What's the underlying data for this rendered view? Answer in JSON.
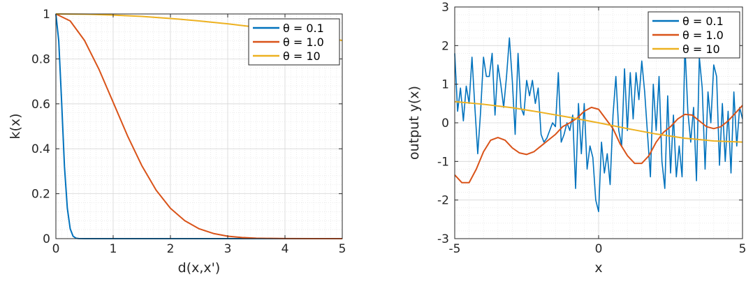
{
  "chart_data": [
    {
      "type": "line",
      "xlabel": "d(x,x')",
      "ylabel": "k(x)",
      "xlim": [
        0,
        5
      ],
      "ylim": [
        0,
        1
      ],
      "xticks": [
        0,
        1,
        2,
        3,
        4,
        5
      ],
      "xtick_labels": [
        "0",
        "1",
        "2",
        "3",
        "4",
        "5"
      ],
      "yticks": [
        0,
        0.2,
        0.4,
        0.6,
        0.8,
        1
      ],
      "ytick_labels": [
        "0",
        "0.2",
        "0.4",
        "0.6",
        "0.8",
        "1"
      ],
      "grid": true,
      "minor_grid": true,
      "legend_position": "top-right",
      "series": [
        {
          "name": "θ = 0.1",
          "color": "#0072BD",
          "x": [
            0,
            0.05,
            0.1,
            0.15,
            0.2,
            0.25,
            0.3,
            0.35,
            0.4,
            0.5,
            0.6,
            1.0,
            2.0,
            3.0,
            4.0,
            5.0
          ],
          "y": [
            1.0,
            0.88,
            0.61,
            0.32,
            0.135,
            0.044,
            0.011,
            0.002,
            0.0003,
            0,
            0,
            0,
            0,
            0,
            0,
            0
          ]
        },
        {
          "name": "θ = 1.0",
          "color": "#D95319",
          "x": [
            0,
            0.25,
            0.5,
            0.75,
            1.0,
            1.25,
            1.5,
            1.75,
            2.0,
            2.25,
            2.5,
            2.75,
            3.0,
            3.25,
            3.5,
            3.75,
            4.0,
            4.5,
            5.0
          ],
          "y": [
            1.0,
            0.969,
            0.882,
            0.755,
            0.607,
            0.458,
            0.325,
            0.216,
            0.135,
            0.08,
            0.044,
            0.023,
            0.011,
            0.005,
            0.002,
            0.001,
            0.0003,
            0,
            0
          ]
        },
        {
          "name": "θ = 10",
          "color": "#EDB120",
          "x": [
            0,
            0.5,
            1.0,
            1.5,
            2.0,
            2.5,
            3.0,
            3.5,
            4.0,
            4.5,
            5.0
          ],
          "y": [
            1.0,
            0.999,
            0.995,
            0.989,
            0.98,
            0.969,
            0.956,
            0.941,
            0.923,
            0.904,
            0.882
          ]
        }
      ]
    },
    {
      "type": "line",
      "xlabel": "x",
      "ylabel": "output y(x)",
      "xlim": [
        -5,
        5
      ],
      "ylim": [
        -3,
        3
      ],
      "xticks": [
        -5,
        0,
        5
      ],
      "xtick_labels": [
        "-5",
        "0",
        "5"
      ],
      "yticks": [
        -3,
        -2,
        -1,
        0,
        1,
        2,
        3
      ],
      "ytick_labels": [
        "-3",
        "-2",
        "-1",
        "0",
        "1",
        "2",
        "3"
      ],
      "grid": true,
      "minor_grid": true,
      "legend_position": "top-right",
      "series": [
        {
          "name": "θ = 0.1",
          "color": "#0072BD",
          "x": [
            -5.0,
            -4.9,
            -4.8,
            -4.7,
            -4.6,
            -4.5,
            -4.4,
            -4.3,
            -4.2,
            -4.1,
            -4.0,
            -3.9,
            -3.8,
            -3.7,
            -3.6,
            -3.5,
            -3.4,
            -3.3,
            -3.2,
            -3.1,
            -3.0,
            -2.9,
            -2.8,
            -2.7,
            -2.6,
            -2.5,
            -2.4,
            -2.3,
            -2.2,
            -2.1,
            -2.0,
            -1.9,
            -1.8,
            -1.7,
            -1.6,
            -1.5,
            -1.4,
            -1.3,
            -1.2,
            -1.1,
            -1.0,
            -0.9,
            -0.8,
            -0.7,
            -0.6,
            -0.5,
            -0.4,
            -0.3,
            -0.2,
            -0.1,
            0.0,
            0.1,
            0.2,
            0.3,
            0.4,
            0.5,
            0.6,
            0.7,
            0.8,
            0.9,
            1.0,
            1.1,
            1.2,
            1.3,
            1.4,
            1.5,
            1.6,
            1.7,
            1.8,
            1.9,
            2.0,
            2.1,
            2.2,
            2.3,
            2.4,
            2.5,
            2.6,
            2.7,
            2.8,
            2.9,
            3.0,
            3.1,
            3.2,
            3.3,
            3.4,
            3.5,
            3.6,
            3.7,
            3.8,
            3.9,
            4.0,
            4.1,
            4.2,
            4.3,
            4.4,
            4.5,
            4.6,
            4.7,
            4.8,
            4.9,
            5.0
          ],
          "y": [
            1.8,
            0.3,
            0.9,
            0.05,
            0.95,
            0.5,
            1.7,
            0.4,
            -0.8,
            0.3,
            1.7,
            1.2,
            1.2,
            1.8,
            0.2,
            1.5,
            1.0,
            0.4,
            1.2,
            2.2,
            1.1,
            -0.3,
            1.8,
            0.4,
            0.2,
            1.1,
            0.7,
            1.1,
            0.5,
            0.9,
            -0.3,
            -0.5,
            -0.4,
            -0.2,
            0.0,
            -0.1,
            1.3,
            -0.5,
            -0.3,
            0.0,
            -0.2,
            0.2,
            -1.7,
            0.5,
            -0.8,
            0.5,
            -1.2,
            -0.6,
            -0.9,
            -2.0,
            -2.3,
            -0.5,
            -1.3,
            -0.8,
            -1.6,
            0.2,
            1.2,
            -0.2,
            -0.6,
            1.4,
            -0.2,
            1.3,
            0.1,
            1.3,
            0.6,
            1.6,
            0.8,
            -0.3,
            -1.4,
            1.0,
            -0.2,
            1.2,
            -1.0,
            -1.7,
            0.7,
            -1.3,
            0.2,
            -1.4,
            -0.6,
            -1.4,
            2.0,
            0.3,
            -0.5,
            0.4,
            -1.5,
            1.7,
            0.9,
            -1.2,
            0.8,
            0.0,
            1.5,
            1.2,
            -1.1,
            0.5,
            -1.0,
            0.3,
            -1.3,
            0.8,
            -0.6,
            0.4,
            0.1
          ]
        },
        {
          "name": "θ = 1.0",
          "color": "#D95319",
          "x": [
            -5.0,
            -4.75,
            -4.5,
            -4.25,
            -4.0,
            -3.75,
            -3.5,
            -3.25,
            -3.0,
            -2.75,
            -2.5,
            -2.25,
            -2.0,
            -1.75,
            -1.5,
            -1.25,
            -1.0,
            -0.75,
            -0.5,
            -0.25,
            0.0,
            0.25,
            0.5,
            0.75,
            1.0,
            1.25,
            1.5,
            1.75,
            2.0,
            2.25,
            2.5,
            2.75,
            3.0,
            3.25,
            3.5,
            3.75,
            4.0,
            4.25,
            4.5,
            4.75,
            5.0
          ],
          "y": [
            -1.35,
            -1.55,
            -1.55,
            -1.2,
            -0.75,
            -0.45,
            -0.38,
            -0.45,
            -0.65,
            -0.78,
            -0.82,
            -0.75,
            -0.6,
            -0.45,
            -0.3,
            -0.1,
            0.0,
            0.12,
            0.3,
            0.4,
            0.35,
            0.1,
            -0.15,
            -0.55,
            -0.85,
            -1.05,
            -1.05,
            -0.85,
            -0.5,
            -0.25,
            -0.1,
            0.1,
            0.22,
            0.2,
            0.05,
            -0.1,
            -0.15,
            -0.1,
            0.05,
            0.25,
            0.45
          ]
        },
        {
          "name": "θ = 10",
          "color": "#EDB120",
          "x": [
            -5.0,
            -4.0,
            -3.0,
            -2.0,
            -1.0,
            0.0,
            1.0,
            2.0,
            3.0,
            4.0,
            5.0
          ],
          "y": [
            0.55,
            0.48,
            0.39,
            0.27,
            0.14,
            0.0,
            -0.15,
            -0.29,
            -0.4,
            -0.47,
            -0.5
          ]
        }
      ]
    }
  ]
}
